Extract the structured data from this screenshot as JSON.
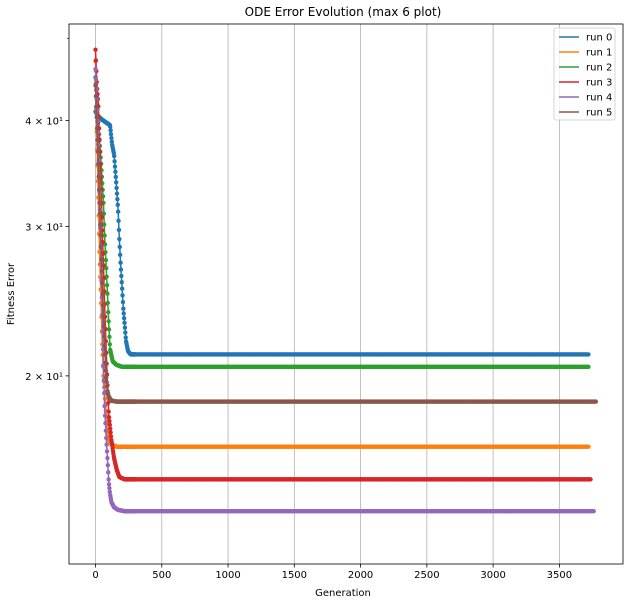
{
  "chart_data": {
    "type": "line",
    "title": "ODE Error Evolution (max 6 plot)",
    "xlabel": "Generation",
    "ylabel": "Fitness Error",
    "yscale": "log",
    "xlim": [
      -200,
      3980
    ],
    "ylim": [
      12.0,
      52.0
    ],
    "x_ticks": [
      0,
      500,
      1000,
      1500,
      2000,
      2500,
      3000,
      3500
    ],
    "y_ticks": [
      {
        "value": 20,
        "label": "2 × 10¹"
      },
      {
        "value": 30,
        "label": "3 × 10¹"
      },
      {
        "value": 40,
        "label": "4 × 10¹"
      }
    ],
    "grid": {
      "x": true,
      "y": false
    },
    "legend": {
      "position": "top-right"
    },
    "series": [
      {
        "name": "run 0",
        "color": "#1f77b4",
        "x_end": 3720,
        "points": [
          [
            0,
            41
          ],
          [
            20,
            40.5
          ],
          [
            40,
            40.2
          ],
          [
            60,
            40.0
          ],
          [
            80,
            39.8
          ],
          [
            100,
            39.6
          ],
          [
            110,
            39.5
          ],
          [
            125,
            37.5
          ],
          [
            140,
            36.5
          ],
          [
            155,
            34.0
          ],
          [
            170,
            31.5
          ],
          [
            180,
            29.0
          ],
          [
            190,
            27.0
          ],
          [
            200,
            25.5
          ],
          [
            210,
            24.0
          ],
          [
            220,
            23.0
          ],
          [
            230,
            22.0
          ],
          [
            245,
            21.4
          ],
          [
            265,
            21.2
          ],
          [
            3720,
            21.2
          ]
        ]
      },
      {
        "name": "run 1",
        "color": "#ff7f0e",
        "x_end": 3720,
        "points": [
          [
            0,
            47
          ],
          [
            10,
            38
          ],
          [
            20,
            33
          ],
          [
            30,
            28
          ],
          [
            40,
            25
          ],
          [
            50,
            22
          ],
          [
            60,
            20
          ],
          [
            70,
            19
          ],
          [
            80,
            18
          ],
          [
            90,
            17.3
          ],
          [
            100,
            16.8
          ],
          [
            120,
            16.6
          ],
          [
            160,
            16.5
          ],
          [
            3720,
            16.5
          ]
        ]
      },
      {
        "name": "run 2",
        "color": "#2ca02c",
        "x_end": 3720,
        "points": [
          [
            0,
            45
          ],
          [
            20,
            40
          ],
          [
            40,
            36
          ],
          [
            60,
            32
          ],
          [
            70,
            29
          ],
          [
            80,
            27
          ],
          [
            90,
            25
          ],
          [
            100,
            23
          ],
          [
            110,
            21.5
          ],
          [
            130,
            20.8
          ],
          [
            160,
            20.6
          ],
          [
            200,
            20.5
          ],
          [
            3720,
            20.5
          ]
        ]
      },
      {
        "name": "run 3",
        "color": "#d62728",
        "x_end": 3740,
        "points": [
          [
            0,
            48.5
          ],
          [
            10,
            44
          ],
          [
            20,
            42
          ],
          [
            30,
            38
          ],
          [
            40,
            34
          ],
          [
            50,
            30
          ],
          [
            60,
            27
          ],
          [
            70,
            24
          ],
          [
            80,
            21.5
          ],
          [
            90,
            19.5
          ],
          [
            100,
            18
          ],
          [
            120,
            16.8
          ],
          [
            140,
            16
          ],
          [
            160,
            15.5
          ],
          [
            180,
            15.2
          ],
          [
            220,
            15.1
          ],
          [
            3740,
            15.1
          ]
        ]
      },
      {
        "name": "run 4",
        "color": "#9467bd",
        "x_end": 3760,
        "points": [
          [
            0,
            46
          ],
          [
            10,
            42
          ],
          [
            20,
            38
          ],
          [
            30,
            33
          ],
          [
            40,
            28
          ],
          [
            50,
            24
          ],
          [
            60,
            20.5
          ],
          [
            70,
            18.2
          ],
          [
            80,
            17
          ],
          [
            90,
            16
          ],
          [
            100,
            15
          ],
          [
            110,
            14.5
          ],
          [
            120,
            14.2
          ],
          [
            140,
            14.0
          ],
          [
            170,
            13.9
          ],
          [
            220,
            13.85
          ],
          [
            3760,
            13.85
          ]
        ]
      },
      {
        "name": "run 5",
        "color": "#8c564b",
        "x_end": 3780,
        "points": [
          [
            0,
            44
          ],
          [
            10,
            40
          ],
          [
            20,
            36
          ],
          [
            30,
            32
          ],
          [
            40,
            29
          ],
          [
            50,
            26
          ],
          [
            60,
            23.5
          ],
          [
            70,
            21.5
          ],
          [
            80,
            20
          ],
          [
            90,
            19.2
          ],
          [
            100,
            18.9
          ],
          [
            120,
            18.7
          ],
          [
            160,
            18.65
          ],
          [
            3780,
            18.65
          ]
        ]
      }
    ]
  }
}
